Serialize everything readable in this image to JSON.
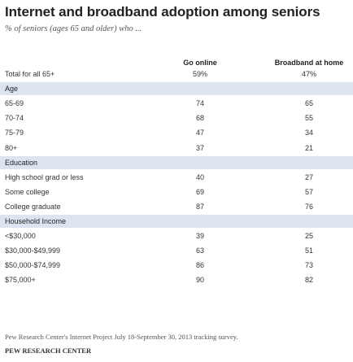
{
  "title": "Internet and broadband adoption among seniors",
  "subtitle": "% of seniors (ages 65 and older) who ...",
  "source": "Pew Research Center's Internet Project July 18-September 30, 2013 tracking survey.",
  "brand": "PEW RESEARCH CENTER",
  "chart_data": {
    "type": "table",
    "columns": [
      "Go online",
      "Broadband at home"
    ],
    "rows": [
      {
        "label": "Total for all 65+",
        "kind": "total",
        "values": [
          "59%",
          "47%"
        ]
      },
      {
        "label": "Age",
        "kind": "section"
      },
      {
        "label": "65-69",
        "kind": "data",
        "values": [
          "74",
          "65"
        ]
      },
      {
        "label": "70-74",
        "kind": "data",
        "values": [
          "68",
          "55"
        ]
      },
      {
        "label": "75-79",
        "kind": "data",
        "values": [
          "47",
          "34"
        ]
      },
      {
        "label": "80+",
        "kind": "data",
        "values": [
          "37",
          "21"
        ]
      },
      {
        "label": "Education",
        "kind": "section"
      },
      {
        "label": "High school grad or less",
        "kind": "data",
        "values": [
          "40",
          "27"
        ]
      },
      {
        "label": "Some college",
        "kind": "data",
        "values": [
          "69",
          "57"
        ]
      },
      {
        "label": "College graduate",
        "kind": "data",
        "values": [
          "87",
          "76"
        ]
      },
      {
        "label": "Household Income",
        "kind": "section"
      },
      {
        "label": "<$30,000",
        "kind": "data",
        "values": [
          "39",
          "25"
        ]
      },
      {
        "label": "$30,000-$49,999",
        "kind": "data",
        "values": [
          "63",
          "51"
        ]
      },
      {
        "label": "$50,000-$74,999",
        "kind": "data",
        "values": [
          "86",
          "73"
        ]
      },
      {
        "label": "$75,000+",
        "kind": "data",
        "values": [
          "90",
          "82"
        ]
      }
    ]
  }
}
